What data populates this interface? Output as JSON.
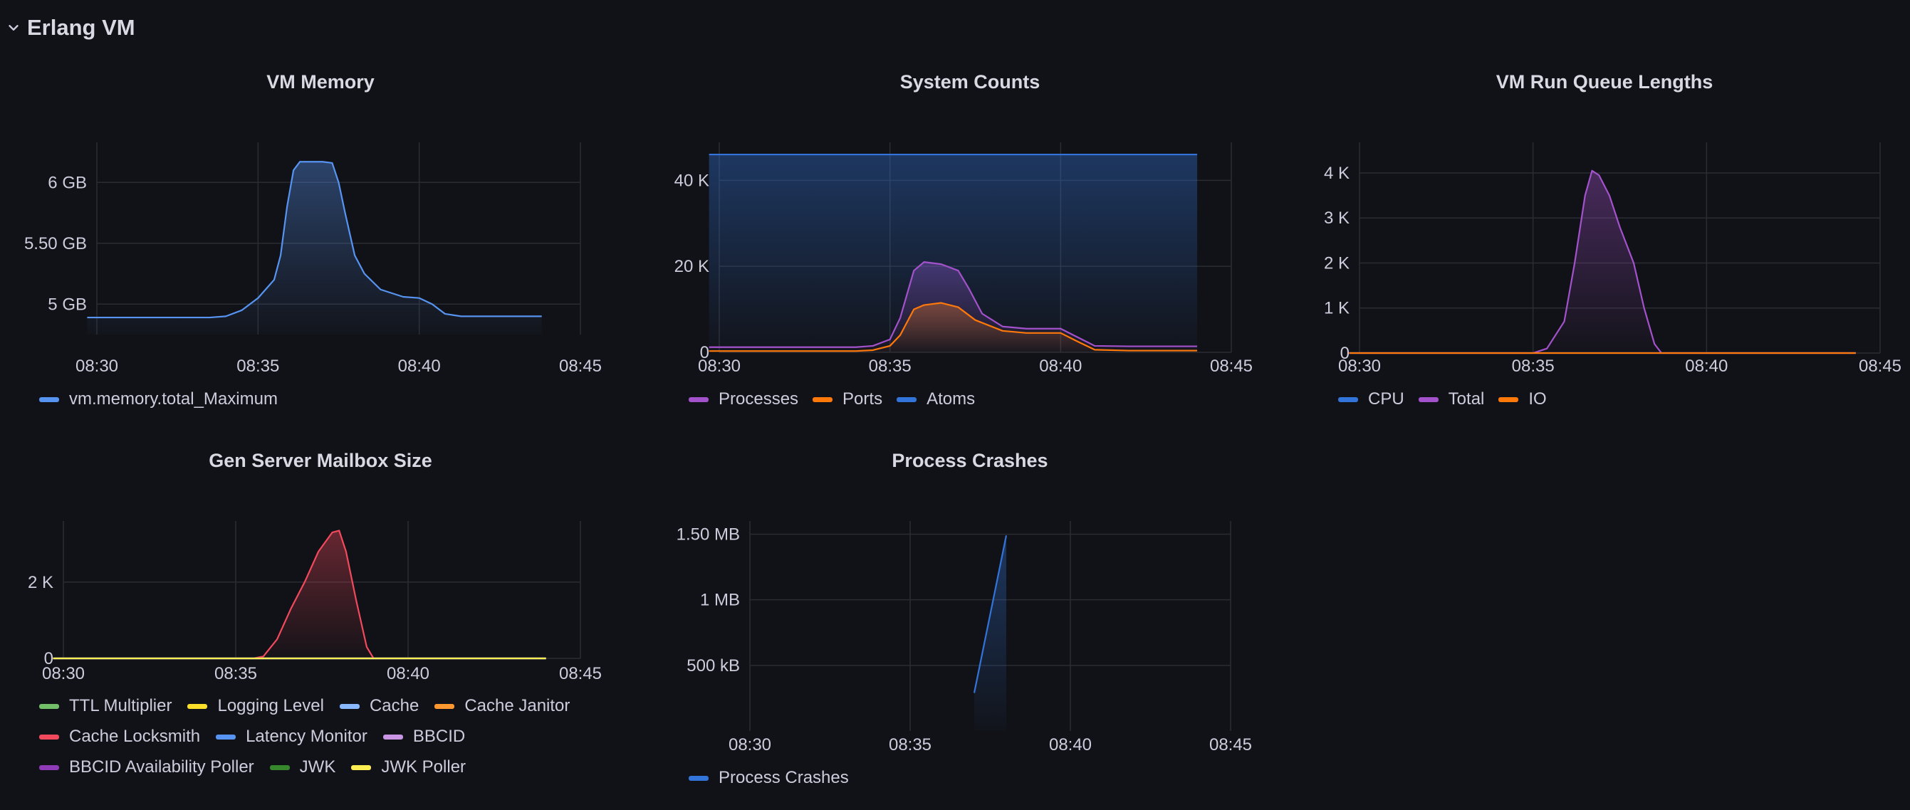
{
  "row": {
    "title": "Erlang VM"
  },
  "chart_data": [
    {
      "id": "vm-memory",
      "type": "area",
      "title": "VM Memory",
      "x_ticks": [
        "08:30",
        "08:35",
        "08:40",
        "08:45"
      ],
      "x_range": [
        0,
        15
      ],
      "y_ticks": [
        {
          "value": 5.0,
          "label": "5 GB"
        },
        {
          "value": 5.5,
          "label": "5.50 GB"
        },
        {
          "value": 6.0,
          "label": "6 GB"
        }
      ],
      "y_range": [
        4.75,
        6.3
      ],
      "series": [
        {
          "name": "vm.memory.total_Maximum",
          "color": "#5794f2",
          "points": [
            [
              -0.3,
              4.89
            ],
            [
              2,
              4.89
            ],
            [
              3.5,
              4.89
            ],
            [
              4,
              4.9
            ],
            [
              4.5,
              4.95
            ],
            [
              5,
              5.05
            ],
            [
              5.5,
              5.2
            ],
            [
              5.7,
              5.4
            ],
            [
              5.9,
              5.8
            ],
            [
              6.1,
              6.1
            ],
            [
              6.3,
              6.17
            ],
            [
              7,
              6.17
            ],
            [
              7.3,
              6.16
            ],
            [
              7.5,
              6.0
            ],
            [
              7.7,
              5.75
            ],
            [
              8,
              5.4
            ],
            [
              8.3,
              5.25
            ],
            [
              8.8,
              5.12
            ],
            [
              9.5,
              5.06
            ],
            [
              10,
              5.05
            ],
            [
              10.4,
              5.0
            ],
            [
              10.8,
              4.92
            ],
            [
              11.3,
              4.9
            ],
            [
              12,
              4.9
            ],
            [
              13.8,
              4.9
            ]
          ]
        }
      ]
    },
    {
      "id": "system-counts",
      "type": "area",
      "title": "System Counts",
      "x_ticks": [
        "08:30",
        "08:35",
        "08:40",
        "08:45"
      ],
      "x_range": [
        0,
        15
      ],
      "y_ticks": [
        {
          "value": 0,
          "label": "0"
        },
        {
          "value": 20000,
          "label": "20 K"
        },
        {
          "value": 40000,
          "label": "40 K"
        }
      ],
      "y_range": [
        0,
        48000
      ],
      "series": [
        {
          "name": "Processes",
          "color": "#a352cc",
          "points": [
            [
              -0.3,
              1200
            ],
            [
              4,
              1200
            ],
            [
              4.5,
              1500
            ],
            [
              5,
              3000
            ],
            [
              5.3,
              8000
            ],
            [
              5.7,
              19000
            ],
            [
              6,
              21000
            ],
            [
              6.5,
              20500
            ],
            [
              7,
              19000
            ],
            [
              7.3,
              15000
            ],
            [
              7.7,
              9000
            ],
            [
              8.3,
              6000
            ],
            [
              9,
              5500
            ],
            [
              10,
              5500
            ],
            [
              10.5,
              3500
            ],
            [
              11,
              1500
            ],
            [
              12,
              1400
            ],
            [
              14,
              1400
            ]
          ]
        },
        {
          "name": "Ports",
          "color": "#ff780a",
          "points": [
            [
              -0.3,
              300
            ],
            [
              4,
              300
            ],
            [
              4.5,
              500
            ],
            [
              5,
              1500
            ],
            [
              5.3,
              4000
            ],
            [
              5.7,
              10000
            ],
            [
              6,
              11000
            ],
            [
              6.5,
              11500
            ],
            [
              7,
              10500
            ],
            [
              7.5,
              7500
            ],
            [
              8.3,
              5000
            ],
            [
              9,
              4500
            ],
            [
              10,
              4500
            ],
            [
              10.5,
              2500
            ],
            [
              11,
              600
            ],
            [
              12,
              400
            ],
            [
              14,
              400
            ]
          ]
        },
        {
          "name": "Atoms",
          "color": "#3274d9",
          "points": [
            [
              -0.3,
              46000
            ],
            [
              14,
              46000
            ]
          ]
        }
      ]
    },
    {
      "id": "run-queue",
      "type": "area",
      "title": "VM Run Queue Lengths",
      "x_ticks": [
        "08:30",
        "08:35",
        "08:40",
        "08:45"
      ],
      "x_range": [
        0,
        15
      ],
      "y_ticks": [
        {
          "value": 0,
          "label": "0"
        },
        {
          "value": 1000,
          "label": "1 K"
        },
        {
          "value": 2000,
          "label": "2 K"
        },
        {
          "value": 3000,
          "label": "3 K"
        },
        {
          "value": 4000,
          "label": "4 K"
        }
      ],
      "y_range": [
        0,
        4600
      ],
      "series": [
        {
          "name": "CPU",
          "color": "#3274d9",
          "points": [
            [
              -0.3,
              0
            ],
            [
              14.3,
              0
            ]
          ]
        },
        {
          "name": "Total",
          "color": "#a352cc",
          "points": [
            [
              -0.3,
              0
            ],
            [
              5,
              0
            ],
            [
              5.4,
              100
            ],
            [
              5.9,
              700
            ],
            [
              6.2,
              2000
            ],
            [
              6.5,
              3500
            ],
            [
              6.7,
              4050
            ],
            [
              6.9,
              3950
            ],
            [
              7.2,
              3500
            ],
            [
              7.5,
              2800
            ],
            [
              7.9,
              2000
            ],
            [
              8.2,
              1000
            ],
            [
              8.5,
              200
            ],
            [
              8.7,
              0
            ],
            [
              14.3,
              0
            ]
          ]
        },
        {
          "name": "IO",
          "color": "#ff780a",
          "points": [
            [
              -0.3,
              0
            ],
            [
              14.3,
              0
            ]
          ]
        }
      ]
    },
    {
      "id": "gen-server-mailbox",
      "type": "area",
      "title": "Gen Server Mailbox Size",
      "x_ticks": [
        "08:30",
        "08:35",
        "08:40",
        "08:45"
      ],
      "x_range": [
        0,
        15
      ],
      "y_ticks": [
        {
          "value": 0,
          "label": "0"
        },
        {
          "value": 2000,
          "label": "2 K"
        }
      ],
      "y_range": [
        0,
        3600
      ],
      "series": [
        {
          "name": "TTL Multiplier",
          "color": "#73bf69",
          "points": [
            [
              -0.3,
              0
            ],
            [
              14,
              0
            ]
          ]
        },
        {
          "name": "Logging Level",
          "color": "#fade2a",
          "points": [
            [
              -0.3,
              0
            ],
            [
              14,
              0
            ]
          ]
        },
        {
          "name": "Cache",
          "color": "#8ab8ff",
          "points": [
            [
              -0.3,
              0
            ],
            [
              14,
              0
            ]
          ]
        },
        {
          "name": "Cache Janitor",
          "color": "#ff9830",
          "points": [
            [
              -0.3,
              0
            ],
            [
              14,
              0
            ]
          ]
        },
        {
          "name": "Cache Locksmith",
          "color": "#f2495c",
          "points": [
            [
              -0.3,
              0
            ],
            [
              5.5,
              0
            ],
            [
              5.8,
              50
            ],
            [
              6.2,
              500
            ],
            [
              6.6,
              1300
            ],
            [
              7,
              2000
            ],
            [
              7.4,
              2800
            ],
            [
              7.8,
              3300
            ],
            [
              8.0,
              3350
            ],
            [
              8.2,
              2800
            ],
            [
              8.5,
              1500
            ],
            [
              8.8,
              300
            ],
            [
              9.0,
              0
            ],
            [
              14,
              0
            ]
          ]
        },
        {
          "name": "Latency Monitor",
          "color": "#5794f2",
          "points": [
            [
              -0.3,
              0
            ],
            [
              14,
              0
            ]
          ]
        },
        {
          "name": "BBCID",
          "color": "#ca95e5",
          "points": [
            [
              -0.3,
              0
            ],
            [
              14,
              0
            ]
          ]
        },
        {
          "name": "BBCID Availability Poller",
          "color": "#8f3bb8",
          "points": [
            [
              -0.3,
              0
            ],
            [
              14,
              0
            ]
          ]
        },
        {
          "name": "JWK",
          "color": "#37872d",
          "points": [
            [
              -0.3,
              0
            ],
            [
              14,
              0
            ]
          ]
        },
        {
          "name": "JWK Poller",
          "color": "#ffee52",
          "points": [
            [
              -0.3,
              0
            ],
            [
              14,
              0
            ]
          ]
        }
      ]
    },
    {
      "id": "process-crashes",
      "type": "area",
      "title": "Process Crashes",
      "x_ticks": [
        "08:30",
        "08:35",
        "08:40",
        "08:45"
      ],
      "x_range": [
        0,
        15
      ],
      "y_ticks": [
        {
          "value": 500000,
          "label": "500 kB"
        },
        {
          "value": 1000000,
          "label": "1 MB"
        },
        {
          "value": 1500000,
          "label": "1.50 MB"
        }
      ],
      "y_range": [
        0,
        1600000
      ],
      "series": [
        {
          "name": "Process Crashes",
          "color": "#3274d9",
          "points": [
            [
              7,
              290000
            ],
            [
              8,
              1490000
            ]
          ]
        }
      ]
    }
  ]
}
